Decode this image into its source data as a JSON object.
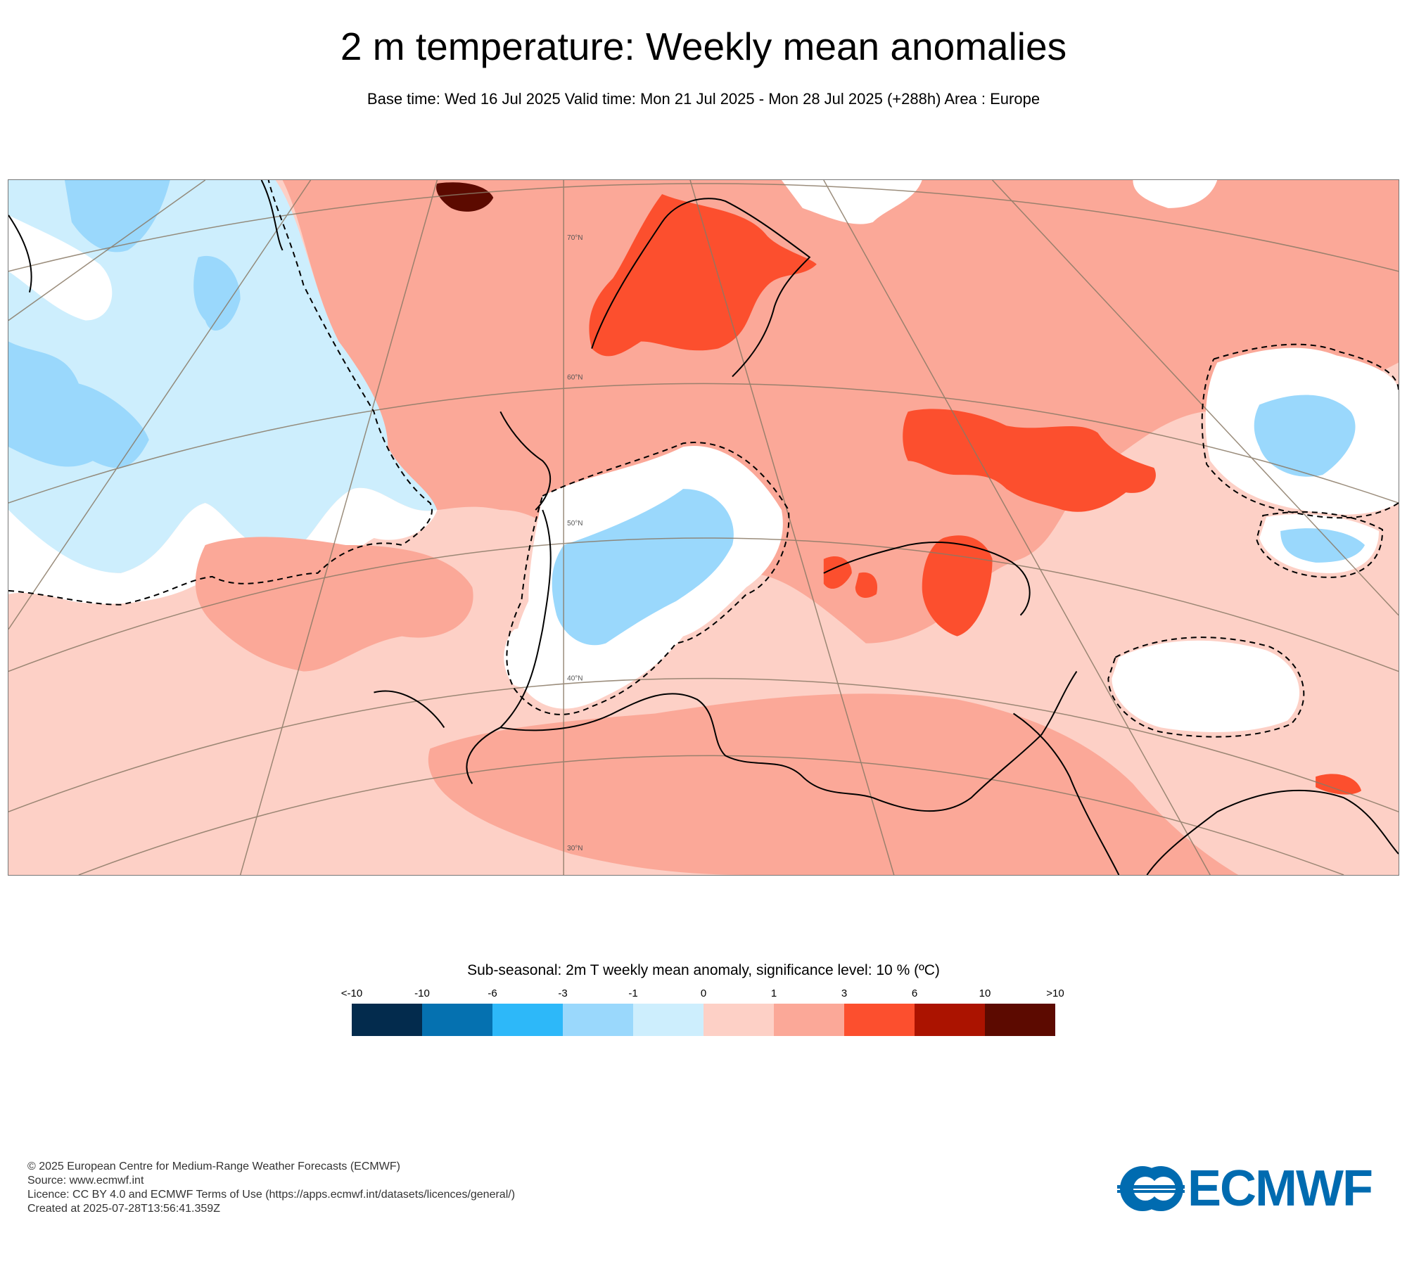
{
  "header": {
    "title": "2 m temperature: Weekly mean anomalies",
    "subtitle": "Base time: Wed 16 Jul 2025 Valid time: Mon 21 Jul 2025 - Mon 28 Jul 2025 (+288h) Area : Europe"
  },
  "map": {
    "region": "Europe",
    "latitude_labels": [
      "70°N",
      "60°N",
      "50°N",
      "40°N",
      "30°N"
    ],
    "colors": {
      "land_border": "#000000",
      "graticule": "#8a7a66",
      "significance_contour": "#000000"
    }
  },
  "legend": {
    "title": "Sub-seasonal: 2m T weekly mean anomaly, significance level: 10 % (ºC)",
    "tick_labels": [
      "<-10",
      "-10",
      "-6",
      "-3",
      "-1",
      "0",
      "1",
      "3",
      "6",
      "10",
      ">10"
    ],
    "colors": [
      "#032b4d",
      "#0571b0",
      "#2db8f9",
      "#9ad8fc",
      "#cdeefd",
      "#fdd0c6",
      "#fba898",
      "#fc4f2e",
      "#ab1300",
      "#5c0a00"
    ]
  },
  "footer": {
    "lines": [
      "© 2025 European Centre for Medium-Range Weather Forecasts (ECMWF)",
      "Source: www.ecmwf.int",
      "Licence: CC BY 4.0 and ECMWF Terms of Use (https://apps.ecmwf.int/datasets/licences/general/)",
      "Created at 2025-07-28T13:56:41.359Z"
    ]
  },
  "logo": {
    "text": "ECMWF",
    "color": "#006bb0"
  }
}
